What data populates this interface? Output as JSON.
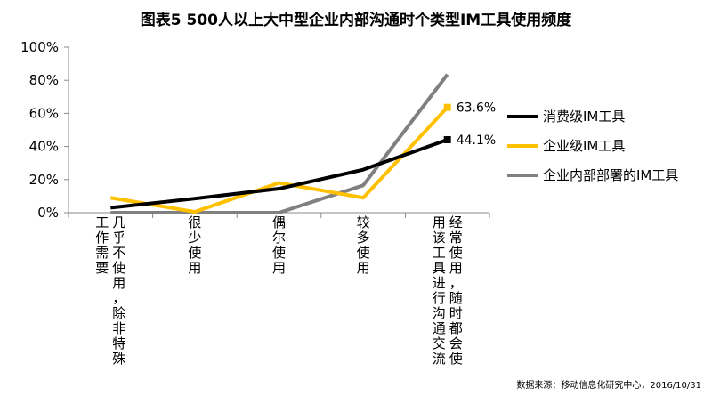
{
  "chart_data": {
    "type": "line",
    "title": "图表5 500人以上大中型企业内部沟通时个类型IM工具使用频度",
    "categories": [
      "几乎不使用，除非特殊工作需要",
      "很少使用",
      "偶尔使用",
      "较多使用",
      "经常使用，随时都会使用该工具进行沟通交流"
    ],
    "category_label_columns": [
      [
        "几乎不使用，除非特殊",
        "工作需要"
      ],
      [
        "很少使用"
      ],
      [
        "偶尔使用"
      ],
      [
        "较多使用"
      ],
      [
        "经常使用，随时都会使",
        "用该工具进行沟通交流"
      ]
    ],
    "y_ticks": [
      "0%",
      "20%",
      "40%",
      "60%",
      "80%",
      "100%"
    ],
    "ylim": [
      0,
      100
    ],
    "grid": false,
    "legend_position": "right",
    "series": [
      {
        "name": "消费级IM工具",
        "color": "#000000",
        "values": [
          3,
          8.5,
          14.5,
          26,
          44.1
        ],
        "end_label": "44.1%"
      },
      {
        "name": "企业级IM工具",
        "color": "#FFC000",
        "values": [
          9,
          0.5,
          18,
          9,
          63.6
        ],
        "end_label": "63.6%"
      },
      {
        "name": "企业内部部署的IM工具",
        "color": "#808080",
        "values": [
          0,
          0,
          0,
          16.5,
          83.5
        ],
        "end_label": ""
      }
    ],
    "source": "数据来源：移动信息化研究中心，2016/10/31"
  }
}
